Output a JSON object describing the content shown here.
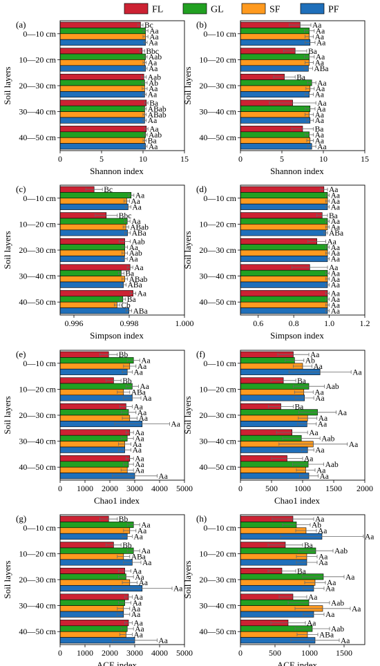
{
  "legend": {
    "items": [
      {
        "name": "FL",
        "color": "#cc2233"
      },
      {
        "name": "GL",
        "color": "#22a022"
      },
      {
        "name": "SF",
        "color": "#ff9a1f"
      },
      {
        "name": "PF",
        "color": "#1f6fba"
      }
    ]
  },
  "chart_data": [
    {
      "panel": "(a)",
      "type": "bar",
      "orientation": "horizontal",
      "categories": [
        "0—10 cm",
        "10—20 cm",
        "20—30 cm",
        "30—40 cm",
        "40—50 cm"
      ],
      "ylabel": "Soil layers",
      "xlabel": "Shannon index",
      "xlim": [
        0,
        15
      ],
      "xticks": [
        0,
        5,
        10,
        15
      ],
      "xtick_labels": [
        "0",
        "5",
        "10",
        "15"
      ],
      "series": [
        {
          "name": "FL",
          "values": [
            9.7,
            9.9,
            10.1,
            10.4,
            10.4
          ],
          "errors": [
            0.3,
            0.3,
            0.3,
            0.2,
            0.2
          ],
          "labels": [
            "Bc",
            "Bbc",
            "Aab",
            "Ba",
            "Aa"
          ]
        },
        {
          "name": "GL",
          "values": [
            10.3,
            10.3,
            10.2,
            10.2,
            10.3
          ],
          "errors": [
            0.3,
            0.2,
            0.3,
            0.2,
            0.2
          ],
          "labels": [
            "Aa",
            "Aab",
            "Ab",
            "ABab",
            "Aab"
          ]
        },
        {
          "name": "SF",
          "values": [
            10.3,
            10.2,
            10.2,
            10.2,
            10.2
          ],
          "errors": [
            0.3,
            0.2,
            0.3,
            0.2,
            0.2
          ],
          "labels": [
            "Aa",
            "Aa",
            "Aa",
            "ABab",
            "Ba"
          ]
        },
        {
          "name": "PF",
          "values": [
            10.3,
            10.3,
            10.2,
            10.2,
            10.3
          ],
          "errors": [
            0.2,
            0.2,
            0.2,
            0.2,
            0.2
          ],
          "labels": [
            "Aa",
            "Aa",
            "Aa",
            "Aa",
            "Aa"
          ]
        }
      ]
    },
    {
      "panel": "(b)",
      "type": "bar",
      "orientation": "horizontal",
      "categories": [
        "0—10 cm",
        "10—20 cm",
        "20—30 cm",
        "30—40 cm",
        "40—50 cm"
      ],
      "ylabel": "Soil layers",
      "xlabel": "Shannon index",
      "xlim": [
        0,
        15
      ],
      "xticks": [
        0,
        5,
        10,
        15
      ],
      "xtick_labels": [
        "0",
        "5",
        "10",
        "15"
      ],
      "series": [
        {
          "name": "FL",
          "values": [
            7.2,
            6.6,
            5.3,
            6.3,
            7.5
          ],
          "errors": [
            1.3,
            1.4,
            1.3,
            2.8,
            1.3
          ],
          "labels": [
            "Aa",
            "Ba",
            "Ba",
            "Aa",
            "Ba"
          ]
        },
        {
          "name": "GL",
          "values": [
            8.3,
            8.3,
            8.6,
            8.4,
            8.3
          ],
          "errors": [
            0.6,
            0.6,
            0.5,
            0.6,
            0.5
          ],
          "labels": [
            "Aa",
            "Aa",
            "Aa",
            "Aa",
            "Aa"
          ]
        },
        {
          "name": "SF",
          "values": [
            8.3,
            8.3,
            8.4,
            8.3,
            8.4
          ],
          "errors": [
            0.5,
            0.5,
            0.5,
            0.5,
            0.4
          ],
          "labels": [
            "Aa",
            "Aa",
            "Aa",
            "Aa",
            "Aa"
          ]
        },
        {
          "name": "PF",
          "values": [
            8.4,
            8.2,
            8.3,
            8.4,
            8.6
          ],
          "errors": [
            0.6,
            0.5,
            0.5,
            0.4,
            0.5
          ],
          "labels": [
            "Aa",
            "ABa",
            "Aa",
            "Aa",
            "Aa"
          ]
        }
      ]
    },
    {
      "panel": "(c)",
      "type": "bar",
      "orientation": "horizontal",
      "categories": [
        "0—10 cm",
        "10—20 cm",
        "20—30 cm",
        "30—40 cm",
        "40—50 cm"
      ],
      "ylabel": "Soil layers",
      "xlabel": "Simpson index",
      "xlim": [
        0.9955,
        1.0
      ],
      "xticks": [
        0.996,
        0.998,
        1.0
      ],
      "xtick_labels": [
        "0.996",
        "0.998",
        "1.000"
      ],
      "series": [
        {
          "name": "FL",
          "values": [
            0.99673,
            0.99717,
            0.99784,
            0.99803,
            0.99814
          ],
          "errors": [
            0.0003,
            0.0004,
            0.0002,
            0.0001,
            0.0001
          ],
          "labels": [
            "Bc",
            "Bbc",
            "Aab",
            "Aa",
            "Aa"
          ]
        },
        {
          "name": "GL",
          "values": [
            0.99807,
            0.99793,
            0.99784,
            0.99771,
            0.99777
          ],
          "errors": [
            0.0001,
            0.0001,
            0.0001,
            0.0001,
            0.0001
          ],
          "labels": [
            "Aa",
            "Aa",
            "Aa",
            "Ba",
            "Ba"
          ]
        },
        {
          "name": "SF",
          "values": [
            0.99791,
            0.99788,
            0.99784,
            0.99784,
            0.99756
          ],
          "errors": [
            0.0001,
            0.0001,
            0.0001,
            0.0001,
            0.0001
          ],
          "labels": [
            "Aa",
            "ABab",
            "Aab",
            "ABab",
            "Cb"
          ]
        },
        {
          "name": "PF",
          "values": [
            0.99796,
            0.99794,
            0.99783,
            0.99779,
            0.99799
          ],
          "errors": [
            0.0001,
            0.0001,
            0.0001,
            0.0001,
            0.0001
          ],
          "labels": [
            "Aa",
            "ABa",
            "Aa",
            "ABa",
            "ABa"
          ]
        }
      ]
    },
    {
      "panel": "(d)",
      "type": "bar",
      "orientation": "horizontal",
      "categories": [
        "0—10 cm",
        "10—20 cm",
        "20—30 cm",
        "30—40 cm",
        "40—50 cm"
      ],
      "ylabel": "Soil layers",
      "xlabel": "Simpson index",
      "xlim": [
        0.5,
        1.2
      ],
      "xticks": [
        0.6,
        0.8,
        1.0,
        1.2
      ],
      "xtick_labels": [
        "0.6",
        "0.8",
        "1.0",
        "1.2"
      ],
      "series": [
        {
          "name": "FL",
          "values": [
            0.97,
            0.96,
            0.93,
            0.89,
            0.99
          ],
          "errors": [
            0.02,
            0.03,
            0.05,
            0.1,
            0.01
          ],
          "labels": [
            "Aa",
            "Ba",
            "Aa",
            "Aa",
            "Aa"
          ]
        },
        {
          "name": "GL",
          "values": [
            0.99,
            0.99,
            0.99,
            0.99,
            0.99
          ],
          "errors": [
            0.01,
            0.01,
            0.01,
            0.01,
            0.01
          ],
          "labels": [
            "Aa",
            "Aa",
            "Aa",
            "Aa",
            "Aa"
          ]
        },
        {
          "name": "SF",
          "values": [
            0.99,
            0.99,
            0.99,
            0.99,
            0.99
          ],
          "errors": [
            0.01,
            0.01,
            0.01,
            0.01,
            0.01
          ],
          "labels": [
            "Aa",
            "Aa",
            "Aa",
            "Aa",
            "Aa"
          ]
        },
        {
          "name": "PF",
          "values": [
            0.99,
            0.98,
            0.99,
            0.99,
            0.99
          ],
          "errors": [
            0.01,
            0.01,
            0.01,
            0.01,
            0.01
          ],
          "labels": [
            "Aa",
            "ABa",
            "Aa",
            "Aa",
            "Aa"
          ]
        }
      ]
    },
    {
      "panel": "(e)",
      "type": "bar",
      "orientation": "horizontal",
      "categories": [
        "0—10 cm",
        "10—20 cm",
        "20—30 cm",
        "30—40 cm",
        "40—50 cm"
      ],
      "ylabel": "Soil layers",
      "xlabel": "Chao1 index",
      "xlim": [
        0,
        5000
      ],
      "xticks": [
        0,
        1000,
        2000,
        3000,
        4000,
        5000
      ],
      "xtick_labels": [
        "0",
        "1000",
        "2000",
        "3000",
        "4000",
        "5000"
      ],
      "series": [
        {
          "name": "FL",
          "values": [
            1950,
            2150,
            2650,
            2800,
            2800
          ],
          "errors": [
            350,
            300,
            250,
            150,
            150
          ],
          "labels": [
            "Bb",
            "Bb",
            "Aa",
            "Aa",
            "Aa"
          ]
        },
        {
          "name": "GL",
          "values": [
            2950,
            2900,
            2750,
            2700,
            2750
          ],
          "errors": [
            250,
            250,
            300,
            250,
            200
          ],
          "labels": [
            "Aa",
            "Aa",
            "Aa",
            "Aa",
            "Aa"
          ]
        },
        {
          "name": "SF",
          "values": [
            2800,
            2550,
            2800,
            2600,
            2700
          ],
          "errors": [
            250,
            250,
            300,
            250,
            250
          ],
          "labels": [
            "Aa",
            "ABa",
            "Aa",
            "Aa",
            "Aa"
          ]
        },
        {
          "name": "PF",
          "values": [
            2700,
            2900,
            3300,
            2600,
            3000
          ],
          "errors": [
            200,
            350,
            1100,
            250,
            900
          ],
          "labels": [
            "Aa",
            "Aa",
            "Aa",
            "Aa",
            "Aa"
          ]
        }
      ]
    },
    {
      "panel": "(f)",
      "type": "bar",
      "orientation": "horizontal",
      "categories": [
        "0—10 cm",
        "10—20 cm",
        "20—30 cm",
        "30—40 cm",
        "40—50 cm"
      ],
      "ylabel": "Soil layers",
      "xlabel": "Chao1 index",
      "xlim": [
        0,
        2000
      ],
      "xticks": [
        0,
        500,
        1000,
        1500,
        2000
      ],
      "xtick_labels": [
        "0",
        "500",
        "1000",
        "1500",
        "2000"
      ],
      "series": [
        {
          "name": "FL",
          "values": [
            850,
            690,
            650,
            830,
            750
          ],
          "errors": [
            250,
            200,
            200,
            250,
            250
          ],
          "labels": [
            "Aa",
            "Ba",
            "Ba",
            "Aa",
            "Aa"
          ]
        },
        {
          "name": "GL",
          "values": [
            870,
            1100,
            1240,
            980,
            1090
          ],
          "errors": [
            150,
            250,
            300,
            300,
            250
          ],
          "labels": [
            "Ab",
            "Aab",
            "Aa",
            "Aab",
            "Aab"
          ]
        },
        {
          "name": "SF",
          "values": [
            1000,
            1020,
            1080,
            1170,
            1050
          ],
          "errors": [
            150,
            150,
            150,
            550,
            150
          ],
          "labels": [
            "Aa",
            "Aa",
            "Aa",
            "Aa",
            "Aa"
          ]
        },
        {
          "name": "PF",
          "values": [
            1280,
            1030,
            1070,
            1080,
            1100
          ],
          "errors": [
            500,
            150,
            150,
            100,
            150
          ],
          "labels": [
            "Aa",
            "Aa",
            "Aa",
            "Aa",
            "Aa"
          ]
        }
      ]
    },
    {
      "panel": "(g)",
      "type": "bar",
      "orientation": "horizontal",
      "categories": [
        "0—10 cm",
        "10—20 cm",
        "20—30 cm",
        "30—40 cm",
        "40—50 cm"
      ],
      "ylabel": "Soil layers",
      "xlabel": "ACE index",
      "xlim": [
        0,
        5000
      ],
      "xticks": [
        0,
        1000,
        2000,
        3000,
        4000,
        5000
      ],
      "xtick_labels": [
        "0",
        "1000",
        "2000",
        "3000",
        "4000",
        "5000"
      ],
      "series": [
        {
          "name": "FL",
          "values": [
            1950,
            2150,
            2600,
            2750,
            2750
          ],
          "errors": [
            350,
            300,
            250,
            150,
            150
          ],
          "labels": [
            "Bb",
            "Bb",
            "Aa",
            "Aa",
            "Aa"
          ]
        },
        {
          "name": "GL",
          "values": [
            2950,
            2950,
            2650,
            2600,
            2700
          ],
          "errors": [
            250,
            250,
            300,
            250,
            250
          ],
          "labels": [
            "Aa",
            "Aa",
            "Aa",
            "Aa",
            "Aa"
          ]
        },
        {
          "name": "SF",
          "values": [
            2800,
            2550,
            2800,
            2550,
            2650
          ],
          "errors": [
            250,
            250,
            300,
            250,
            250
          ],
          "labels": [
            "Aa",
            "ABa",
            "Aa",
            "Aa",
            "Aa"
          ]
        },
        {
          "name": "PF",
          "values": [
            2700,
            2900,
            3300,
            2550,
            3000
          ],
          "errors": [
            200,
            350,
            1200,
            250,
            900
          ],
          "labels": [
            "Aa",
            "Aa",
            "Aa",
            "Aa",
            "Aa"
          ]
        }
      ]
    },
    {
      "panel": "(h)",
      "type": "bar",
      "orientation": "horizontal",
      "categories": [
        "0—10 cm",
        "10—20 cm",
        "20—30 cm",
        "30—40 cm",
        "40—50 cm"
      ],
      "ylabel": "Soil layers",
      "xlabel": "ACE index",
      "xlim": [
        0,
        1800
      ],
      "xticks": [
        0,
        500,
        1000,
        1500
      ],
      "xtick_labels": [
        "0",
        "500",
        "1000",
        "1500"
      ],
      "series": [
        {
          "name": "FL",
          "values": [
            760,
            650,
            600,
            760,
            690
          ],
          "errors": [
            300,
            250,
            200,
            200,
            250
          ],
          "labels": [
            "Aa",
            "Ba",
            "Ba",
            "Aa",
            "Aa"
          ]
        },
        {
          "name": "GL",
          "values": [
            810,
            1090,
            1200,
            990,
            1040
          ],
          "errors": [
            200,
            250,
            300,
            300,
            250
          ],
          "labels": [
            "Ab",
            "Aab",
            "Aa",
            "Aab",
            "Aab"
          ]
        },
        {
          "name": "SF",
          "values": [
            950,
            960,
            1080,
            1190,
            970
          ],
          "errors": [
            150,
            150,
            150,
            400,
            150
          ],
          "labels": [
            "Aa",
            "Aa",
            "Aa",
            "Aa",
            "ABa"
          ]
        },
        {
          "name": "PF",
          "values": [
            1180,
            960,
            1060,
            1060,
            1080
          ],
          "errors": [
            600,
            150,
            150,
            150,
            350
          ],
          "labels": [
            "Aa",
            "Aa",
            "Aa",
            "Aa",
            "Aa"
          ]
        }
      ]
    }
  ]
}
